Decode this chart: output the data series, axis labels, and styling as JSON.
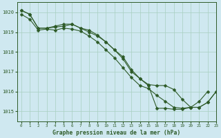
{
  "title": "Graphe pression niveau de la mer (hPa)",
  "bg_color": "#cfe8f0",
  "plot_bg_color": "#cfe8f0",
  "line_color": "#2d5a27",
  "grid_color": "#a8cfc0",
  "text_color": "#2d5a27",
  "xlim": [
    -0.5,
    23
  ],
  "ylim": [
    1014.5,
    1020.5
  ],
  "yticks": [
    1015,
    1016,
    1017,
    1018,
    1019,
    1020
  ],
  "xticks": [
    0,
    1,
    2,
    3,
    4,
    5,
    6,
    7,
    8,
    9,
    10,
    11,
    12,
    13,
    14,
    15,
    16,
    17,
    18,
    19,
    20,
    21,
    22,
    23
  ],
  "series": [
    [
      1019.9,
      1019.65,
      1019.1,
      1019.15,
      1019.1,
      1019.2,
      1019.15,
      1019.05,
      1018.8,
      1018.5,
      1018.1,
      1017.7,
      1017.2,
      1016.7,
      1016.3,
      1016.15,
      1015.8,
      1015.5,
      1015.2,
      1015.15,
      1015.2,
      1015.5,
      1016.0,
      null
    ],
    [
      1020.1,
      1019.9,
      1019.2,
      1019.2,
      1019.25,
      1019.3,
      1019.4,
      1019.2,
      1019.1,
      1018.85,
      1018.5,
      1018.1,
      1017.75,
      1017.1,
      1016.65,
      1016.35,
      1016.3,
      1016.3,
      1016.1,
      1015.6,
      1015.2,
      1015.2,
      1015.45,
      1016.0
    ],
    [
      1020.1,
      1019.9,
      1019.2,
      1019.2,
      1019.3,
      1019.4,
      1019.4,
      1019.2,
      1019.0,
      1018.8,
      1018.5,
      1018.1,
      1017.65,
      1017.0,
      1016.65,
      1016.3,
      1015.15,
      1015.15,
      1015.1,
      1015.1,
      1015.2,
      1015.2,
      1015.45,
      1016.0
    ]
  ],
  "marker": "D",
  "markersize": 2.5,
  "linewidth": 0.8,
  "figsize": [
    3.2,
    2.0
  ],
  "dpi": 100
}
